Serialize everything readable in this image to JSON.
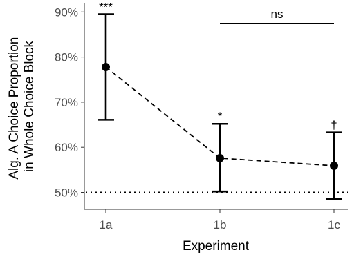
{
  "chart_data": {
    "type": "scatter",
    "xlabel": "Experiment",
    "ylabel_lines": [
      "Alg. A Choice Proportion",
      "in Whole Choice Block"
    ],
    "categories": [
      "1a",
      "1b",
      "1c"
    ],
    "y_ticks": [
      50,
      60,
      70,
      80,
      90
    ],
    "y_tick_labels": [
      "50%",
      "60%",
      "70%",
      "80%",
      "90%"
    ],
    "ylim": [
      45,
      92
    ],
    "series": [
      {
        "values": [
          77.8,
          57.6,
          55.9
        ],
        "lower": [
          66.1,
          50.2,
          48.5
        ],
        "upper": [
          89.5,
          65.2,
          63.3
        ],
        "annotations": [
          "***",
          "*",
          "†"
        ]
      }
    ],
    "reference_line": {
      "y": 50,
      "style": "dotted"
    },
    "comparison_bracket": {
      "from": "1b",
      "to": "1c",
      "label": "ns"
    },
    "line_style": "dashed",
    "grid": false,
    "colors": {
      "marks": "#000000",
      "tick_text": "#4d4d4d",
      "axis": "#333333"
    }
  }
}
